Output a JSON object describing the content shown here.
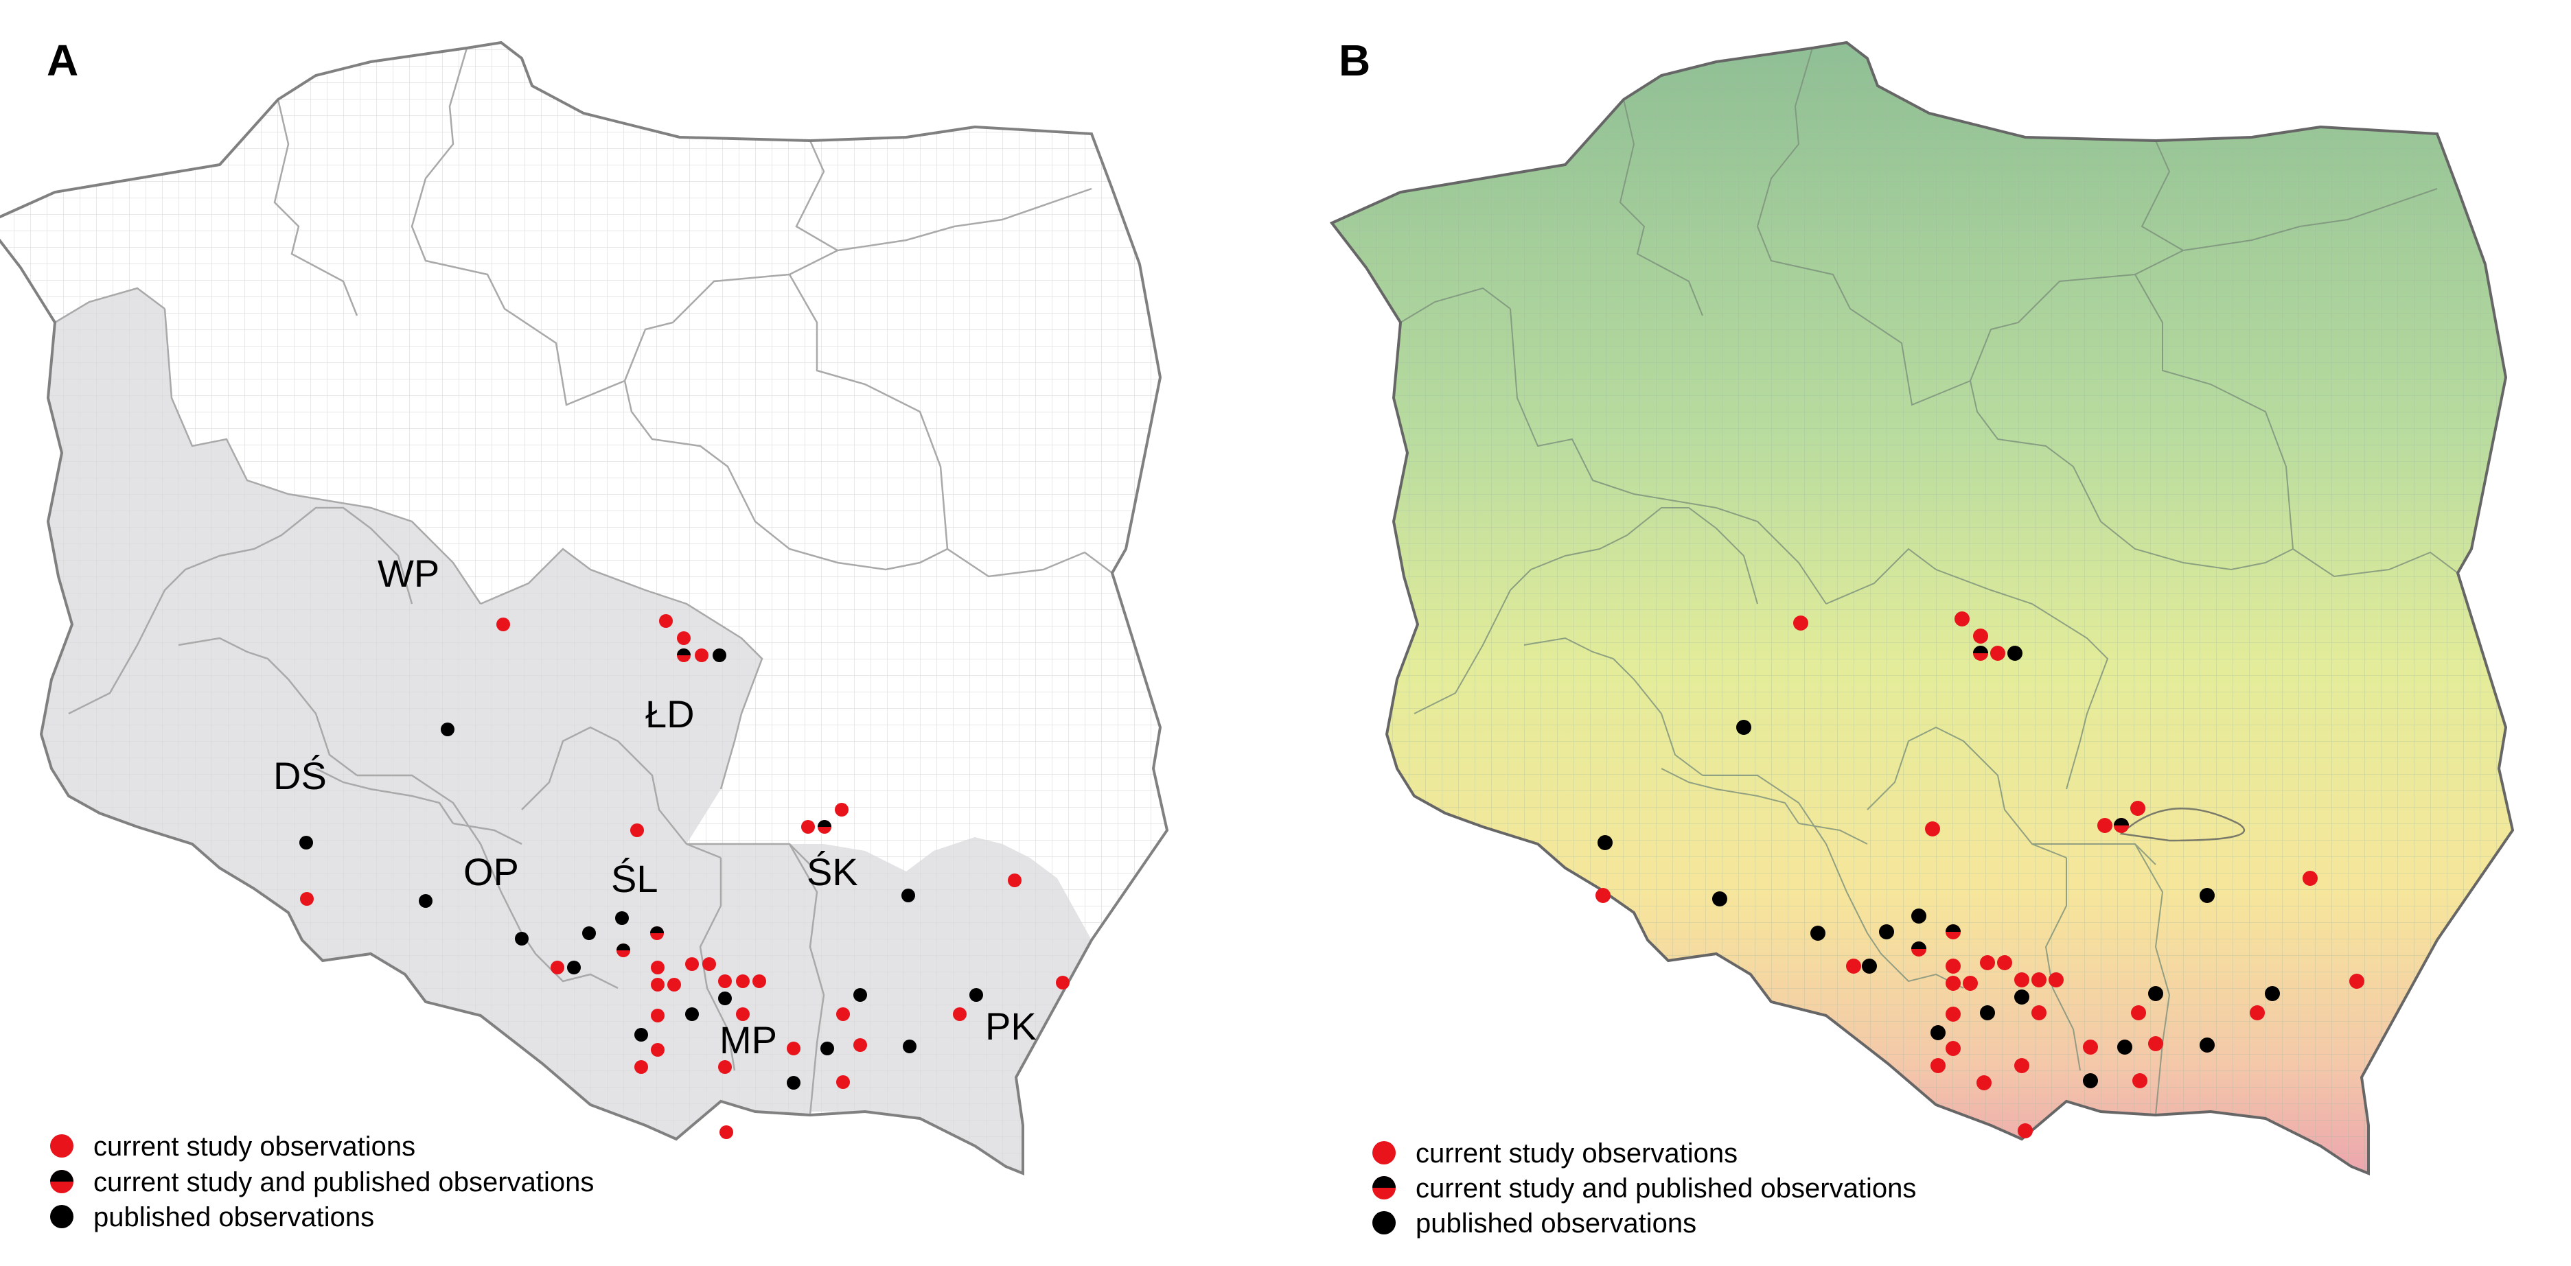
{
  "panels": [
    {
      "letter": "A",
      "regions": [
        "WP",
        "ŁD",
        "DŚ",
        "OP",
        "ŚL",
        "ŚK",
        "MP",
        "PK"
      ]
    },
    {
      "letter": "B"
    }
  ],
  "legend": {
    "current": "current study observations",
    "both": "current study and published observations",
    "published": "published observations"
  },
  "colors": {
    "current": "#e8131b",
    "published": "#000000",
    "shaded_regions": "#e3e2e5",
    "border": "#808080"
  }
}
